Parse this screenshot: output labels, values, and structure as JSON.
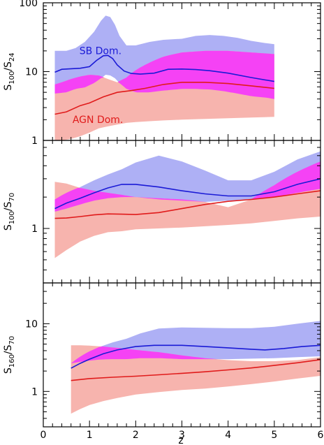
{
  "chart_data": {
    "type": "area",
    "xlabel": "z",
    "xlim": [
      0,
      6
    ],
    "xticks": [
      0,
      1,
      2,
      3,
      4,
      5,
      6
    ],
    "colors": {
      "sb_band": "#aeb0f5",
      "agn_band": "#f7b4ae",
      "overlap": "#f542f5",
      "sb_line": "#1a1ad6",
      "agn_line": "#e01b1b"
    },
    "panels": [
      {
        "ylabel_main": "S",
        "ylabel_num": "100",
        "ylabel_sep": "/S",
        "ylabel_den": "24",
        "yscale": "log",
        "ylim": [
          1,
          100
        ],
        "yticks": [
          1,
          10,
          100
        ],
        "annotations": [
          {
            "text": "SB Dom.",
            "series": "sb"
          },
          {
            "text": "AGN Dom.",
            "series": "agn"
          }
        ],
        "sb_band": {
          "x": [
            0.25,
            0.5,
            0.7,
            0.9,
            1.1,
            1.25,
            1.35,
            1.45,
            1.55,
            1.65,
            1.8,
            2.0,
            2.3,
            2.6,
            3.0,
            3.3,
            3.6,
            3.9,
            4.2,
            4.5,
            4.8,
            5.0
          ],
          "low": [
            4.8,
            5.0,
            5.6,
            5.9,
            6.8,
            8.0,
            9.0,
            8.8,
            8.0,
            6.8,
            5.6,
            5.0,
            5.0,
            5.3,
            5.6,
            5.6,
            5.5,
            5.2,
            4.8,
            4.4,
            4.2,
            4.0
          ],
          "high": [
            20,
            20,
            22,
            27,
            38,
            55,
            65,
            62,
            48,
            33,
            24,
            24,
            27,
            29,
            30,
            33,
            34,
            33,
            31,
            28,
            26,
            25
          ]
        },
        "agn_band": {
          "x": [
            0.25,
            0.4,
            0.6,
            0.8,
            1.0,
            1.2,
            1.4,
            1.6,
            1.8,
            2.0,
            2.3,
            2.6,
            3.0,
            3.5,
            4.0,
            4.5,
            5.0
          ],
          "low": [
            1.0,
            1.0,
            1.05,
            1.15,
            1.3,
            1.5,
            1.6,
            1.7,
            1.8,
            1.85,
            1.9,
            1.95,
            2.0,
            2.05,
            2.1,
            2.15,
            2.2
          ],
          "high": [
            6.5,
            7.0,
            7.8,
            8.5,
            9.0,
            8.8,
            7.8,
            7.0,
            8.2,
            10.5,
            13.5,
            16.5,
            19,
            20,
            20,
            19,
            18
          ]
        },
        "sb_line": {
          "x": [
            0.25,
            0.4,
            0.6,
            0.8,
            1.0,
            1.15,
            1.3,
            1.4,
            1.5,
            1.6,
            1.75,
            1.9,
            2.1,
            2.4,
            2.7,
            3.0,
            3.3,
            3.6,
            4.0,
            4.5,
            5.0
          ],
          "y": [
            9.8,
            10.8,
            11.0,
            11.2,
            11.8,
            14.5,
            17.0,
            17.2,
            15.5,
            12.5,
            10.2,
            9.4,
            9.2,
            9.5,
            10.8,
            10.9,
            10.7,
            10.3,
            9.5,
            8.2,
            7.2
          ]
        },
        "agn_line": {
          "x": [
            0.25,
            0.5,
            0.8,
            1.0,
            1.3,
            1.6,
            1.9,
            2.2,
            2.6,
            3.0,
            3.5,
            4.0,
            4.5,
            5.0
          ],
          "y": [
            2.4,
            2.6,
            3.2,
            3.5,
            4.3,
            5.0,
            5.3,
            5.7,
            6.5,
            7.0,
            7.0,
            6.7,
            6.2,
            5.7
          ]
        }
      },
      {
        "ylabel_main": "S",
        "ylabel_num": "100",
        "ylabel_sep": "/S",
        "ylabel_den": "70",
        "yscale": "log",
        "ylim": [
          0.3,
          7
        ],
        "yticks": [
          1
        ],
        "sb_band": {
          "x": [
            0.25,
            0.5,
            0.8,
            1.1,
            1.4,
            1.7,
            2.0,
            2.5,
            3.0,
            3.5,
            4.0,
            4.5,
            5.0,
            5.5,
            6.0
          ],
          "low": [
            1.45,
            1.55,
            1.7,
            1.85,
            1.95,
            2.0,
            2.0,
            1.9,
            1.85,
            1.8,
            1.85,
            1.9,
            2.0,
            2.2,
            2.4
          ],
          "high": [
            1.9,
            2.2,
            2.5,
            2.9,
            3.3,
            3.7,
            4.3,
            5.0,
            4.4,
            3.6,
            2.9,
            2.9,
            3.5,
            4.6,
            5.5
          ]
        },
        "agn_band": {
          "x": [
            0.25,
            0.5,
            0.8,
            1.1,
            1.4,
            1.7,
            2.0,
            2.5,
            3.0,
            3.5,
            4.0,
            4.5,
            5.0,
            5.5,
            6.0
          ],
          "low": [
            0.52,
            0.62,
            0.75,
            0.85,
            0.92,
            0.94,
            0.98,
            1.0,
            1.02,
            1.05,
            1.08,
            1.12,
            1.18,
            1.25,
            1.3
          ],
          "high": [
            2.8,
            2.7,
            2.45,
            2.3,
            2.2,
            2.1,
            2.0,
            1.95,
            1.9,
            1.8,
            1.6,
            1.9,
            2.6,
            3.5,
            4.4
          ]
        },
        "sb_line": {
          "x": [
            0.25,
            0.5,
            0.8,
            1.1,
            1.4,
            1.7,
            2.0,
            2.5,
            3.0,
            3.5,
            4.0,
            4.5,
            5.0,
            5.5,
            6.0
          ],
          "y": [
            1.55,
            1.75,
            1.95,
            2.2,
            2.45,
            2.65,
            2.65,
            2.5,
            2.3,
            2.15,
            2.05,
            2.05,
            2.25,
            2.65,
            3.0
          ]
        },
        "agn_line": {
          "x": [
            0.25,
            0.5,
            0.8,
            1.1,
            1.4,
            1.7,
            2.0,
            2.5,
            3.0,
            3.5,
            4.0,
            4.5,
            5.0,
            5.5,
            6.0
          ],
          "y": [
            1.25,
            1.26,
            1.3,
            1.35,
            1.38,
            1.37,
            1.36,
            1.42,
            1.55,
            1.7,
            1.82,
            1.9,
            2.0,
            2.15,
            2.3
          ]
        }
      },
      {
        "ylabel_main": "S",
        "ylabel_num": "160",
        "ylabel_sep": "/S",
        "ylabel_den": "70",
        "yscale": "log",
        "ylim": [
          0.3,
          40
        ],
        "yticks": [
          1,
          10
        ],
        "sb_band": {
          "x": [
            0.6,
            0.9,
            1.2,
            1.5,
            1.8,
            2.1,
            2.5,
            3.0,
            3.5,
            4.0,
            4.5,
            5.0,
            5.5,
            6.0
          ],
          "low": [
            2.6,
            2.8,
            2.95,
            3.0,
            3.0,
            3.1,
            3.1,
            3.0,
            3.0,
            3.0,
            3.05,
            3.1,
            3.2,
            3.3
          ],
          "high": [
            2.6,
            3.6,
            4.5,
            5.3,
            6.0,
            7.2,
            8.5,
            8.8,
            8.7,
            8.6,
            8.6,
            9.0,
            10.0,
            11.0
          ]
        },
        "agn_band": {
          "x": [
            0.6,
            0.8,
            1.0,
            1.3,
            1.6,
            2.0,
            2.5,
            3.0,
            3.5,
            4.0,
            4.5,
            5.0,
            5.5,
            6.0
          ],
          "low": [
            0.47,
            0.55,
            0.63,
            0.72,
            0.8,
            0.9,
            0.98,
            1.05,
            1.1,
            1.18,
            1.28,
            1.4,
            1.55,
            1.7
          ],
          "high": [
            4.8,
            4.8,
            4.75,
            4.6,
            4.4,
            4.1,
            3.8,
            3.4,
            3.1,
            2.9,
            2.8,
            2.8,
            2.9,
            3.2
          ]
        },
        "sb_line": {
          "x": [
            0.6,
            0.8,
            1.0,
            1.3,
            1.6,
            2.0,
            2.4,
            3.0,
            3.5,
            4.0,
            4.5,
            4.8,
            5.2,
            5.6,
            6.0
          ],
          "y": [
            2.2,
            2.6,
            3.0,
            3.6,
            4.1,
            4.6,
            4.8,
            4.8,
            4.6,
            4.4,
            4.2,
            4.1,
            4.3,
            4.6,
            4.8
          ]
        },
        "agn_line": {
          "x": [
            0.6,
            1.0,
            1.5,
            2.0,
            2.5,
            3.0,
            3.5,
            4.0,
            4.5,
            5.0,
            5.5,
            6.0
          ],
          "y": [
            1.45,
            1.55,
            1.62,
            1.68,
            1.76,
            1.85,
            1.95,
            2.08,
            2.22,
            2.42,
            2.65,
            2.95
          ]
        }
      }
    ]
  }
}
